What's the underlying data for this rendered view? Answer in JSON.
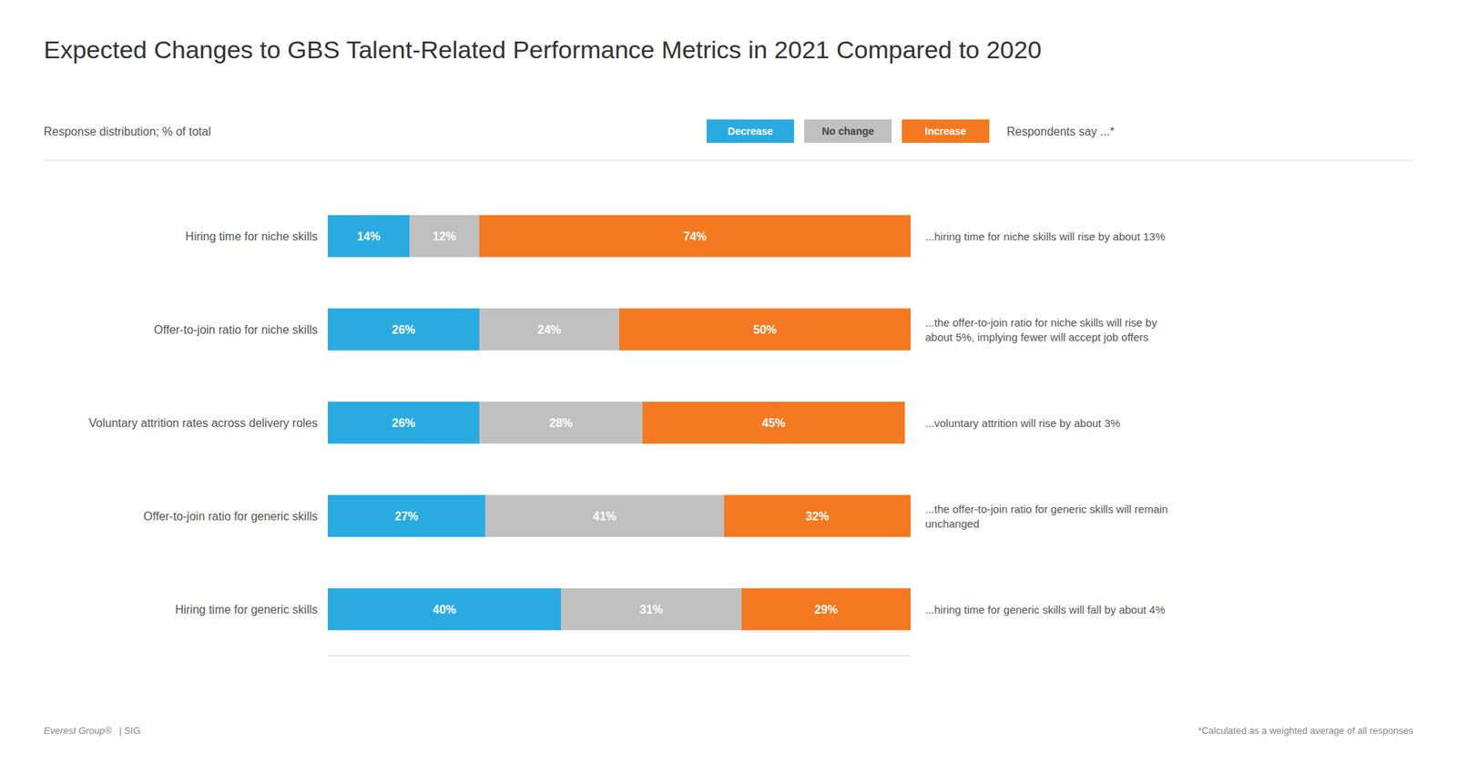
{
  "chart_data": {
    "type": "bar",
    "orientation": "horizontal",
    "stacked": true,
    "title": "Expected Changes to GBS Talent-Related Performance Metrics in 2021 Compared to 2020",
    "subtitle": "Response distribution; % of total",
    "legend_title": "Respondents say ...*",
    "footnote": "*Calculated as a weighted average of all responses",
    "credits": [
      "Everest Group®",
      "| SIG"
    ],
    "categories": [
      "Hiring time for niche skills",
      "Offer-to-join ratio for niche skills",
      "Voluntary attrition rates across delivery roles",
      "Offer-to-join ratio for generic skills",
      "Hiring time for generic skills"
    ],
    "series": [
      {
        "name": "Decrease",
        "color": "#29ABE2",
        "values": [
          14,
          26,
          26,
          27,
          40
        ],
        "value_labels": [
          "14%",
          "26%",
          "26%",
          "27%",
          "40%"
        ]
      },
      {
        "name": "No change",
        "color": "#C0C0C0",
        "values": [
          12,
          24,
          28,
          41,
          31
        ],
        "value_labels": [
          "12%",
          "24%",
          "28%",
          "41%",
          "31%"
        ]
      },
      {
        "name": "Increase",
        "color": "#F47920",
        "values": [
          74,
          50,
          45,
          32,
          29
        ],
        "value_labels": [
          "74%",
          "50%",
          "45%",
          "32%",
          "29%"
        ]
      }
    ],
    "annotations": [
      "...hiring time for niche skills will rise by about 13%",
      "...the offer-to-join ratio for niche skills will rise by\nabout 5%, implying fewer will accept job offers",
      "...voluntary attrition will rise by about 3%",
      "...the offer-to-join ratio for generic skills will remain\nunchanged",
      "...hiring time for generic skills will fall by about 4%"
    ],
    "xlim": [
      0,
      100
    ],
    "data_labels": true,
    "tick_labels": false,
    "grid": false,
    "legend": "top"
  }
}
